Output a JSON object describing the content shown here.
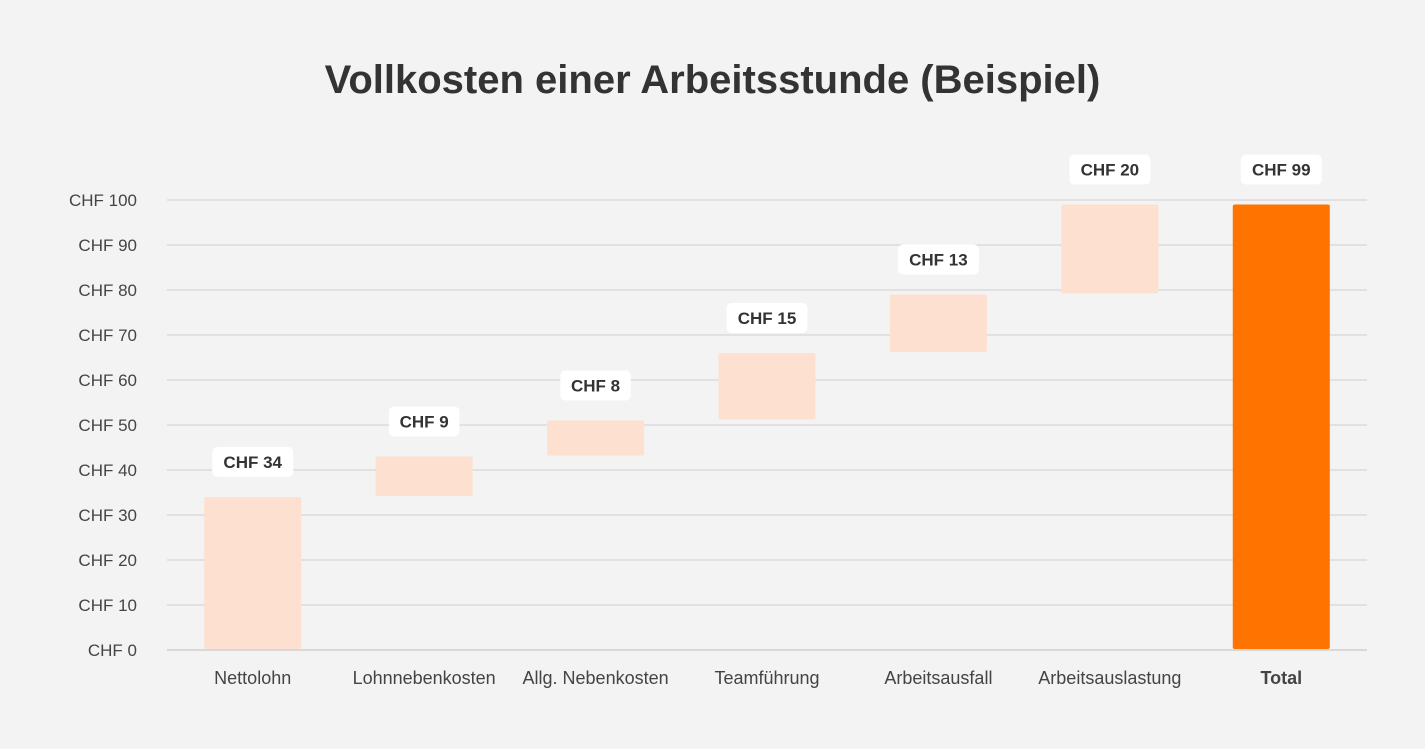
{
  "colors": {
    "background": "#f3f3f3",
    "increment_bar": "#fde0cf",
    "total_bar": "#ff7300",
    "grid": "#cfcfcf",
    "text": "#444444",
    "title": "#333333",
    "label_box": "#ffffff"
  },
  "chart_data": {
    "type": "waterfall",
    "title": "Vollkosten einer Arbeitsstunde (Beispiel)",
    "xlabel": "",
    "ylabel": "",
    "ylim": [
      0,
      100
    ],
    "yticks": [
      0,
      10,
      20,
      30,
      40,
      50,
      60,
      70,
      80,
      90,
      100
    ],
    "ytick_labels": [
      "CHF 0",
      "CHF 10",
      "CHF 20",
      "CHF 30",
      "CHF 40",
      "CHF 50",
      "CHF 60",
      "CHF 70",
      "CHF 80",
      "CHF 90",
      "CHF 100"
    ],
    "grid": true,
    "legend": "none",
    "categories": [
      "Nettolohn",
      "Lohnnebenkosten",
      "Allg. Nebenkosten",
      "Teamführung",
      "Arbeitsausfall",
      "Arbeitsauslastung",
      "Total"
    ],
    "values": [
      34,
      9,
      8,
      15,
      13,
      20,
      99
    ],
    "is_total": [
      false,
      false,
      false,
      false,
      false,
      false,
      true
    ],
    "data_labels": [
      "CHF 34",
      "CHF 9",
      "CHF 8",
      "CHF 15",
      "CHF 13",
      "CHF 20",
      "CHF 99"
    ]
  }
}
